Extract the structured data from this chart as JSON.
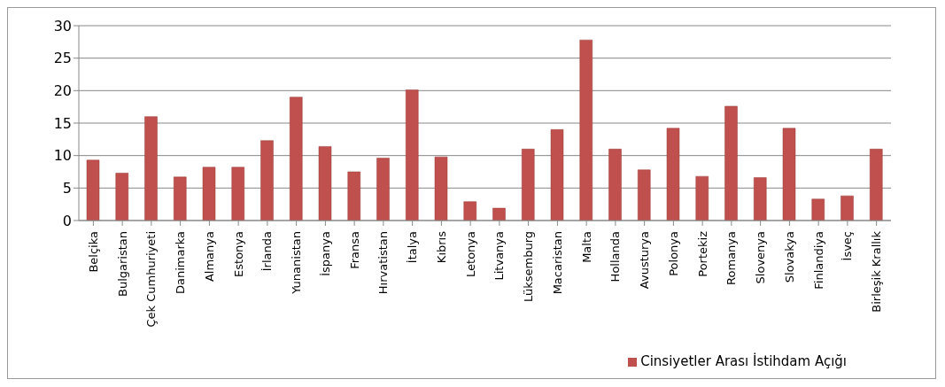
{
  "chart_data": {
    "type": "bar",
    "categories": [
      "Belçika",
      "Bulgaristan",
      "Çek Cumhuriyeti",
      "Danimarka",
      "Almanya",
      "Estonya",
      "İrlanda",
      "Yunanistan",
      "İspanya",
      "Fransa",
      "Hırvatistan",
      "İtalya",
      "Kıbrıs",
      "Letonya",
      "Litvanya",
      "Lüksemburg",
      "Macaristan",
      "Malta",
      "Hollanda",
      "Avusturya",
      "Polonya",
      "Portekiz",
      "Romanya",
      "Slovenya",
      "Slovakya",
      "Finlandiya",
      "İsveç",
      "Birleşik Krallık"
    ],
    "series": [
      {
        "name": "Cinsiyetler Arası İstihdam Açığı",
        "color": "#c0504d",
        "values": [
          9.3,
          7.3,
          16,
          6.7,
          8.2,
          8.2,
          12.3,
          19,
          11.4,
          7.5,
          9.6,
          20.1,
          9.8,
          2.9,
          1.9,
          11,
          14,
          27.8,
          11,
          7.8,
          14.2,
          6.8,
          17.6,
          6.6,
          14.2,
          3.3,
          3.8,
          11
        ]
      }
    ],
    "ylim": [
      0,
      30
    ],
    "yticks": [
      0,
      5,
      10,
      15,
      20,
      25,
      30
    ],
    "grid": "y",
    "legend": "bottom right"
  }
}
